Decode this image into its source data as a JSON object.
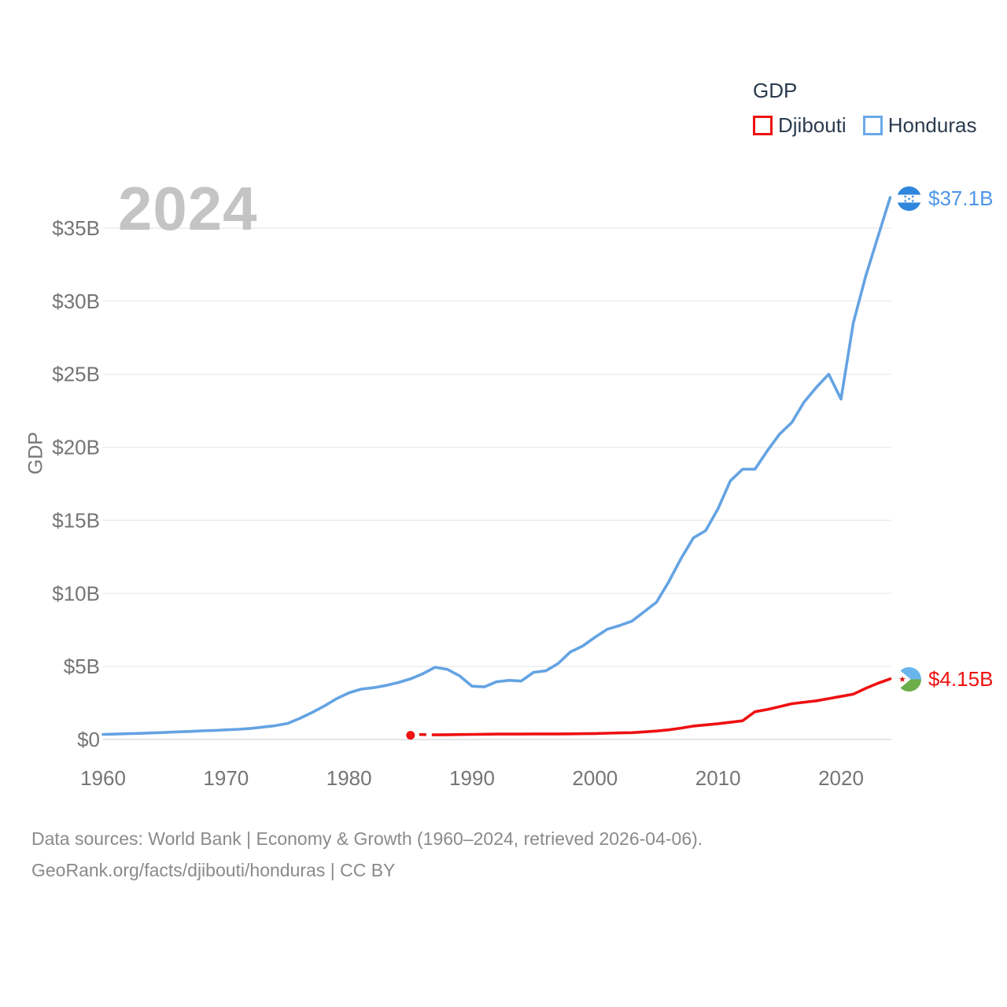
{
  "page": {
    "background": "#ffffff"
  },
  "watermark": {
    "year": "2024"
  },
  "legend": {
    "title": "GDP",
    "items": [
      {
        "label": "Djibouti",
        "color": "#ee1111"
      },
      {
        "label": "Honduras",
        "color": "#6aa9e8"
      }
    ]
  },
  "end_labels": {
    "honduras": {
      "value": "$37.1B",
      "flag": "honduras-flag"
    },
    "djibouti": {
      "value": "$4.15B",
      "flag": "djibouti-flag"
    }
  },
  "footer": {
    "line1": "Data sources: World Bank | Economy & Growth (1960–2024, retrieved 2026-04-06).",
    "line2": "GeoRank.org/facts/djibouti/honduras | CC BY"
  },
  "colors": {
    "honduras_line": "#64a3e3",
    "djibouti_line": "#ee1111",
    "honduras_label": "#4e96e8",
    "djibouti_label": "#ee1111",
    "tick_text": "#757575",
    "legend_text": "#2b3b4e",
    "gridline": "#ececec",
    "zero_line": "#dcdcdc",
    "watermark": "#c4c4c4",
    "footer_text": "#8a8a8a"
  },
  "chart_data": {
    "type": "line",
    "title": "",
    "xlabel": "",
    "ylabel": "GDP",
    "xlim": [
      1960,
      2024
    ],
    "ylim": [
      0,
      37.5
    ],
    "grid": "horizontal",
    "legend_position": "top-right",
    "x_ticks": [
      1960,
      1970,
      1980,
      1990,
      2000,
      2010,
      2020
    ],
    "y_ticks": [
      {
        "value": 0,
        "label": "$0"
      },
      {
        "value": 5,
        "label": "$5B"
      },
      {
        "value": 10,
        "label": "$10B"
      },
      {
        "value": 15,
        "label": "$15B"
      },
      {
        "value": 20,
        "label": "$20B"
      },
      {
        "value": 25,
        "label": "$25B"
      },
      {
        "value": 30,
        "label": "$30B"
      },
      {
        "value": 35,
        "label": "$35B"
      }
    ],
    "series": [
      {
        "name": "Honduras",
        "color": "#64a3e3",
        "unit": "billion USD",
        "start_year": 1960,
        "end_value_label": "$37.1B",
        "values": [
          0.35,
          0.37,
          0.4,
          0.42,
          0.45,
          0.48,
          0.52,
          0.55,
          0.59,
          0.62,
          0.66,
          0.7,
          0.76,
          0.85,
          0.95,
          1.1,
          1.45,
          1.85,
          2.3,
          2.8,
          3.2,
          3.45,
          3.55,
          3.7,
          3.9,
          4.15,
          4.5,
          4.95,
          4.8,
          4.35,
          3.65,
          3.6,
          3.95,
          4.05,
          4.0,
          4.6,
          4.7,
          5.2,
          6.0,
          6.4,
          7.0,
          7.55,
          7.8,
          8.1,
          8.75,
          9.4,
          10.8,
          12.4,
          13.8,
          14.3,
          15.8,
          17.7,
          18.5,
          18.5,
          19.75,
          20.9,
          21.7,
          23.1,
          24.1,
          25.0,
          23.3,
          28.5,
          31.7,
          34.4,
          37.1
        ]
      },
      {
        "name": "Djibouti",
        "color": "#ee1111",
        "unit": "billion USD",
        "start_year": 1987,
        "end_value_label": "$4.15B",
        "isolated_point": {
          "year": 1985,
          "value": 0.29
        },
        "dashed_segment": {
          "from": {
            "year": 1985,
            "value": 0.29
          },
          "to": {
            "year": 1987,
            "value": 0.32
          }
        },
        "values": [
          0.32,
          0.33,
          0.34,
          0.35,
          0.36,
          0.37,
          0.37,
          0.37,
          0.38,
          0.38,
          0.38,
          0.39,
          0.4,
          0.41,
          0.43,
          0.45,
          0.47,
          0.52,
          0.58,
          0.66,
          0.78,
          0.92,
          1.0,
          1.08,
          1.18,
          1.28,
          1.9,
          2.05,
          2.25,
          2.45,
          2.55,
          2.65,
          2.8,
          2.95,
          3.1,
          3.5,
          3.85,
          4.15
        ]
      }
    ]
  }
}
